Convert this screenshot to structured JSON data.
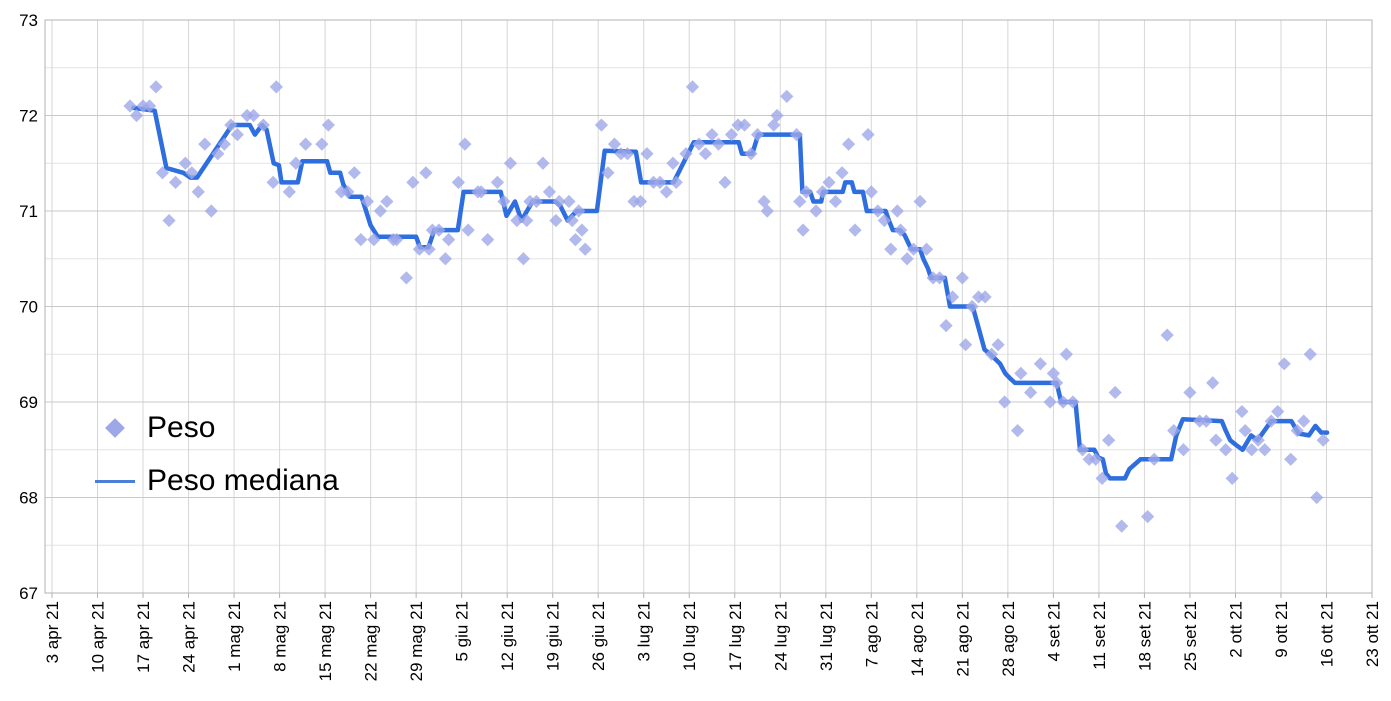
{
  "chart_data": {
    "type": "scatter",
    "title": "",
    "x_axis": {
      "label": "",
      "tick_labels": [
        "3 apr 21",
        "10 apr 21",
        "17 apr 21",
        "24 apr 21",
        "1 mag 21",
        "8 mag 21",
        "15 mag 21",
        "22 mag 21",
        "29 mag 21",
        "5 giu 21",
        "12 giu 21",
        "19 giu 21",
        "26 giu 21",
        "3 lug 21",
        "10 lug 21",
        "17 lug 21",
        "24 lug 21",
        "31 lug 21",
        "7 ago 21",
        "14 ago 21",
        "21 ago 21",
        "28 ago 21",
        "4 set 21",
        "11 set 21",
        "18 set 21",
        "25 set 21",
        "2 ott 21",
        "9 ott 21",
        "16 ott 21",
        "23 ott 21"
      ],
      "tick_interval_days": 7,
      "domain_days": [
        0,
        203
      ],
      "grid": true
    },
    "y_axis": {
      "label": "",
      "min": 67,
      "max": 73,
      "tick_labels": [
        "67",
        "68",
        "69",
        "70",
        "71",
        "72",
        "73"
      ],
      "major_step": 1,
      "minor_step": 0.5,
      "grid": true
    },
    "legend": {
      "position": "inside-top-left",
      "items": [
        {
          "label": "Peso",
          "marker": "diamond"
        },
        {
          "label": "Peso mediana",
          "marker": "line"
        }
      ]
    },
    "colors": {
      "scatter": "#9ea7e8",
      "line": "#2f6ede",
      "legend_line": "#4a7ed7",
      "grid_major": "#c9c9c9",
      "grid_minor": "#e4e4e4",
      "grid_vertical": "#d6d6d6",
      "axis_border": "#b3b3b3",
      "text": "#000000"
    },
    "series": [
      {
        "name": "Peso",
        "type": "scatter",
        "marker": "diamond",
        "points": [
          [
            12,
            72.1
          ],
          [
            13,
            72.0
          ],
          [
            14,
            72.1
          ],
          [
            15,
            72.1
          ],
          [
            16,
            72.3
          ],
          [
            17,
            71.4
          ],
          [
            18,
            70.9
          ],
          [
            19,
            71.3
          ],
          [
            20.5,
            71.5
          ],
          [
            21.5,
            71.4
          ],
          [
            22.5,
            71.2
          ],
          [
            23.5,
            71.7
          ],
          [
            24.5,
            71.0
          ],
          [
            25.5,
            71.6
          ],
          [
            26.5,
            71.7
          ],
          [
            27.5,
            71.9
          ],
          [
            28.5,
            71.8
          ],
          [
            30,
            72.0
          ],
          [
            31,
            72.0
          ],
          [
            32.5,
            71.9
          ],
          [
            34,
            71.3
          ],
          [
            34.5,
            72.3
          ],
          [
            36.5,
            71.2
          ],
          [
            37.5,
            71.5
          ],
          [
            39,
            71.7
          ],
          [
            41.5,
            71.7
          ],
          [
            42.5,
            71.9
          ],
          [
            44.5,
            71.2
          ],
          [
            45.5,
            71.2
          ],
          [
            46.5,
            71.4
          ],
          [
            47.5,
            70.7
          ],
          [
            48.5,
            71.1
          ],
          [
            49.5,
            70.7
          ],
          [
            50.5,
            71.0
          ],
          [
            51.5,
            71.1
          ],
          [
            52.5,
            70.7
          ],
          [
            53,
            70.7
          ],
          [
            54.5,
            70.3
          ],
          [
            55.5,
            71.3
          ],
          [
            56.5,
            70.6
          ],
          [
            57.5,
            71.4
          ],
          [
            58,
            70.6
          ],
          [
            58.5,
            70.8
          ],
          [
            59.5,
            70.8
          ],
          [
            60.5,
            70.5
          ],
          [
            61,
            70.7
          ],
          [
            62.5,
            71.3
          ],
          [
            63.5,
            71.7
          ],
          [
            64,
            70.8
          ],
          [
            65.5,
            71.2
          ],
          [
            66,
            71.2
          ],
          [
            67,
            70.7
          ],
          [
            68.5,
            71.3
          ],
          [
            69.5,
            71.1
          ],
          [
            70.5,
            71.5
          ],
          [
            71.5,
            70.9
          ],
          [
            72.5,
            70.5
          ],
          [
            73,
            70.9
          ],
          [
            73.5,
            71.1
          ],
          [
            74.5,
            71.1
          ],
          [
            75.5,
            71.5
          ],
          [
            76.5,
            71.2
          ],
          [
            77.5,
            70.9
          ],
          [
            78,
            71.1
          ],
          [
            79.5,
            71.1
          ],
          [
            80,
            70.9
          ],
          [
            80.5,
            70.7
          ],
          [
            81,
            71.0
          ],
          [
            81.5,
            70.8
          ],
          [
            82,
            70.6
          ],
          [
            84.5,
            71.9
          ],
          [
            85.5,
            71.4
          ],
          [
            86.5,
            71.7
          ],
          [
            87.5,
            71.6
          ],
          [
            88.5,
            71.6
          ],
          [
            89.5,
            71.1
          ],
          [
            90.5,
            71.1
          ],
          [
            91.5,
            71.6
          ],
          [
            92.5,
            71.3
          ],
          [
            93.5,
            71.3
          ],
          [
            94.5,
            71.2
          ],
          [
            95.5,
            71.5
          ],
          [
            96,
            71.3
          ],
          [
            97.5,
            71.6
          ],
          [
            98.5,
            72.3
          ],
          [
            99.5,
            71.7
          ],
          [
            100.5,
            71.6
          ],
          [
            101.5,
            71.8
          ],
          [
            102.5,
            71.7
          ],
          [
            103.5,
            71.3
          ],
          [
            104.5,
            71.8
          ],
          [
            105.5,
            71.9
          ],
          [
            106.5,
            71.9
          ],
          [
            107.5,
            71.6
          ],
          [
            108.5,
            71.8
          ],
          [
            109.5,
            71.1
          ],
          [
            110,
            71.0
          ],
          [
            111,
            71.9
          ],
          [
            111.5,
            72.0
          ],
          [
            113,
            72.2
          ],
          [
            114.5,
            71.8
          ],
          [
            115,
            71.1
          ],
          [
            115.5,
            70.8
          ],
          [
            116,
            71.2
          ],
          [
            117.5,
            71.0
          ],
          [
            118.5,
            71.2
          ],
          [
            119.5,
            71.3
          ],
          [
            120.5,
            71.1
          ],
          [
            121.5,
            71.4
          ],
          [
            122.5,
            71.7
          ],
          [
            123.5,
            70.8
          ],
          [
            125.5,
            71.8
          ],
          [
            126,
            71.2
          ],
          [
            127,
            71.0
          ],
          [
            128,
            70.9
          ],
          [
            129,
            70.6
          ],
          [
            130,
            71.0
          ],
          [
            130.5,
            70.8
          ],
          [
            131.5,
            70.5
          ],
          [
            132.5,
            70.6
          ],
          [
            133.5,
            71.1
          ],
          [
            134.5,
            70.6
          ],
          [
            135.5,
            70.3
          ],
          [
            136.5,
            70.3
          ],
          [
            137.5,
            69.8
          ],
          [
            138.5,
            70.1
          ],
          [
            140,
            70.3
          ],
          [
            140.5,
            69.6
          ],
          [
            141.5,
            70.0
          ],
          [
            142.5,
            70.1
          ],
          [
            143.5,
            70.1
          ],
          [
            144.5,
            69.5
          ],
          [
            145.5,
            69.6
          ],
          [
            146.5,
            69.0
          ],
          [
            148.5,
            68.7
          ],
          [
            149,
            69.3
          ],
          [
            150.5,
            69.1
          ],
          [
            152,
            69.4
          ],
          [
            153.5,
            69.0
          ],
          [
            154,
            69.3
          ],
          [
            154.5,
            69.2
          ],
          [
            155.5,
            69.0
          ],
          [
            156,
            69.5
          ],
          [
            157,
            69.0
          ],
          [
            158.5,
            68.5
          ],
          [
            159.5,
            68.4
          ],
          [
            160.5,
            68.4
          ],
          [
            161.5,
            68.2
          ],
          [
            162.5,
            68.6
          ],
          [
            163.5,
            69.1
          ],
          [
            164.5,
            67.7
          ],
          [
            168.5,
            67.8
          ],
          [
            169.5,
            68.4
          ],
          [
            171.5,
            69.7
          ],
          [
            172.5,
            68.7
          ],
          [
            174,
            68.5
          ],
          [
            175,
            69.1
          ],
          [
            176.5,
            68.8
          ],
          [
            177.5,
            68.8
          ],
          [
            178.5,
            69.2
          ],
          [
            179,
            68.6
          ],
          [
            180.5,
            68.5
          ],
          [
            181.5,
            68.2
          ],
          [
            183,
            68.9
          ],
          [
            183.5,
            68.7
          ],
          [
            184.5,
            68.5
          ],
          [
            185.5,
            68.6
          ],
          [
            186.5,
            68.5
          ],
          [
            187.5,
            68.8
          ],
          [
            188.5,
            68.9
          ],
          [
            189.5,
            69.4
          ],
          [
            190.5,
            68.4
          ],
          [
            191.5,
            68.7
          ],
          [
            192.5,
            68.8
          ],
          [
            193.5,
            69.5
          ],
          [
            194.5,
            68.0
          ],
          [
            195.5,
            68.6
          ]
        ]
      },
      {
        "name": "Peso mediana",
        "type": "line",
        "points": [
          [
            12.5,
            72.08
          ],
          [
            15.8,
            72.05
          ],
          [
            17.6,
            71.45
          ],
          [
            20.2,
            71.4
          ],
          [
            21.3,
            71.35
          ],
          [
            22.3,
            71.35
          ],
          [
            27.7,
            71.9
          ],
          [
            30.4,
            71.9
          ],
          [
            31.2,
            71.8
          ],
          [
            32.3,
            71.9
          ],
          [
            33.0,
            71.85
          ],
          [
            34.1,
            71.5
          ],
          [
            34.9,
            71.48
          ],
          [
            35.3,
            71.3
          ],
          [
            37.8,
            71.3
          ],
          [
            38.5,
            71.52
          ],
          [
            42.3,
            71.52
          ],
          [
            42.8,
            71.4
          ],
          [
            44.3,
            71.4
          ],
          [
            44.8,
            71.28
          ],
          [
            45.8,
            71.15
          ],
          [
            47.6,
            71.15
          ],
          [
            48.3,
            71.0
          ],
          [
            49.0,
            70.85
          ],
          [
            50.1,
            70.73
          ],
          [
            56.0,
            70.73
          ],
          [
            56.6,
            70.62
          ],
          [
            57.9,
            70.62
          ],
          [
            58.8,
            70.8
          ],
          [
            62.4,
            70.8
          ],
          [
            63.3,
            71.2
          ],
          [
            69.0,
            71.2
          ],
          [
            69.9,
            70.95
          ],
          [
            71.2,
            71.1
          ],
          [
            72.2,
            70.9
          ],
          [
            73.9,
            71.1
          ],
          [
            77.4,
            71.1
          ],
          [
            78.2,
            71.05
          ],
          [
            79.3,
            70.9
          ],
          [
            80.7,
            71.0
          ],
          [
            83.8,
            71.0
          ],
          [
            85.0,
            71.63
          ],
          [
            89.8,
            71.62
          ],
          [
            90.6,
            71.3
          ],
          [
            95.6,
            71.3
          ],
          [
            98.7,
            71.72
          ],
          [
            105.6,
            71.72
          ],
          [
            106.1,
            71.6
          ],
          [
            107.7,
            71.6
          ],
          [
            108.6,
            71.8
          ],
          [
            115.0,
            71.8
          ],
          [
            115.4,
            71.2
          ],
          [
            116.6,
            71.2
          ],
          [
            117.1,
            71.1
          ],
          [
            118.3,
            71.1
          ],
          [
            118.6,
            71.2
          ],
          [
            121.6,
            71.2
          ],
          [
            122.0,
            71.3
          ],
          [
            123.0,
            71.3
          ],
          [
            123.4,
            71.2
          ],
          [
            124.7,
            71.2
          ],
          [
            125.3,
            71.0
          ],
          [
            128.2,
            71.0
          ],
          [
            128.7,
            70.9
          ],
          [
            129.3,
            70.8
          ],
          [
            130.4,
            70.8
          ],
          [
            131.1,
            70.75
          ],
          [
            131.8,
            70.65
          ],
          [
            132.2,
            70.6
          ],
          [
            133.5,
            70.6
          ],
          [
            134.0,
            70.5
          ],
          [
            134.7,
            70.4
          ],
          [
            135.2,
            70.3
          ],
          [
            137.3,
            70.3
          ],
          [
            138.1,
            70.0
          ],
          [
            141.6,
            70.0
          ],
          [
            143.4,
            69.55
          ],
          [
            144.3,
            69.5
          ],
          [
            145.8,
            69.4
          ],
          [
            146.6,
            69.3
          ],
          [
            147.3,
            69.25
          ],
          [
            148.1,
            69.2
          ],
          [
            154.5,
            69.2
          ],
          [
            155.2,
            69.0
          ],
          [
            157.4,
            69.0
          ],
          [
            158.1,
            68.5
          ],
          [
            160.3,
            68.5
          ],
          [
            160.9,
            68.42
          ],
          [
            161.6,
            68.4
          ],
          [
            162.1,
            68.25
          ],
          [
            162.7,
            68.2
          ],
          [
            165.0,
            68.2
          ],
          [
            165.7,
            68.3
          ],
          [
            167.4,
            68.4
          ],
          [
            172.1,
            68.4
          ],
          [
            172.9,
            68.65
          ],
          [
            173.9,
            68.82
          ],
          [
            179.9,
            68.8
          ],
          [
            180.5,
            68.7
          ],
          [
            181.2,
            68.6
          ],
          [
            182.1,
            68.55
          ],
          [
            183.1,
            68.5
          ],
          [
            184.4,
            68.65
          ],
          [
            185.4,
            68.6
          ],
          [
            187.5,
            68.8
          ],
          [
            190.6,
            68.8
          ],
          [
            191.7,
            68.67
          ],
          [
            193.3,
            68.65
          ],
          [
            194.3,
            68.75
          ],
          [
            195.2,
            68.68
          ],
          [
            196.1,
            68.68
          ]
        ]
      }
    ]
  }
}
